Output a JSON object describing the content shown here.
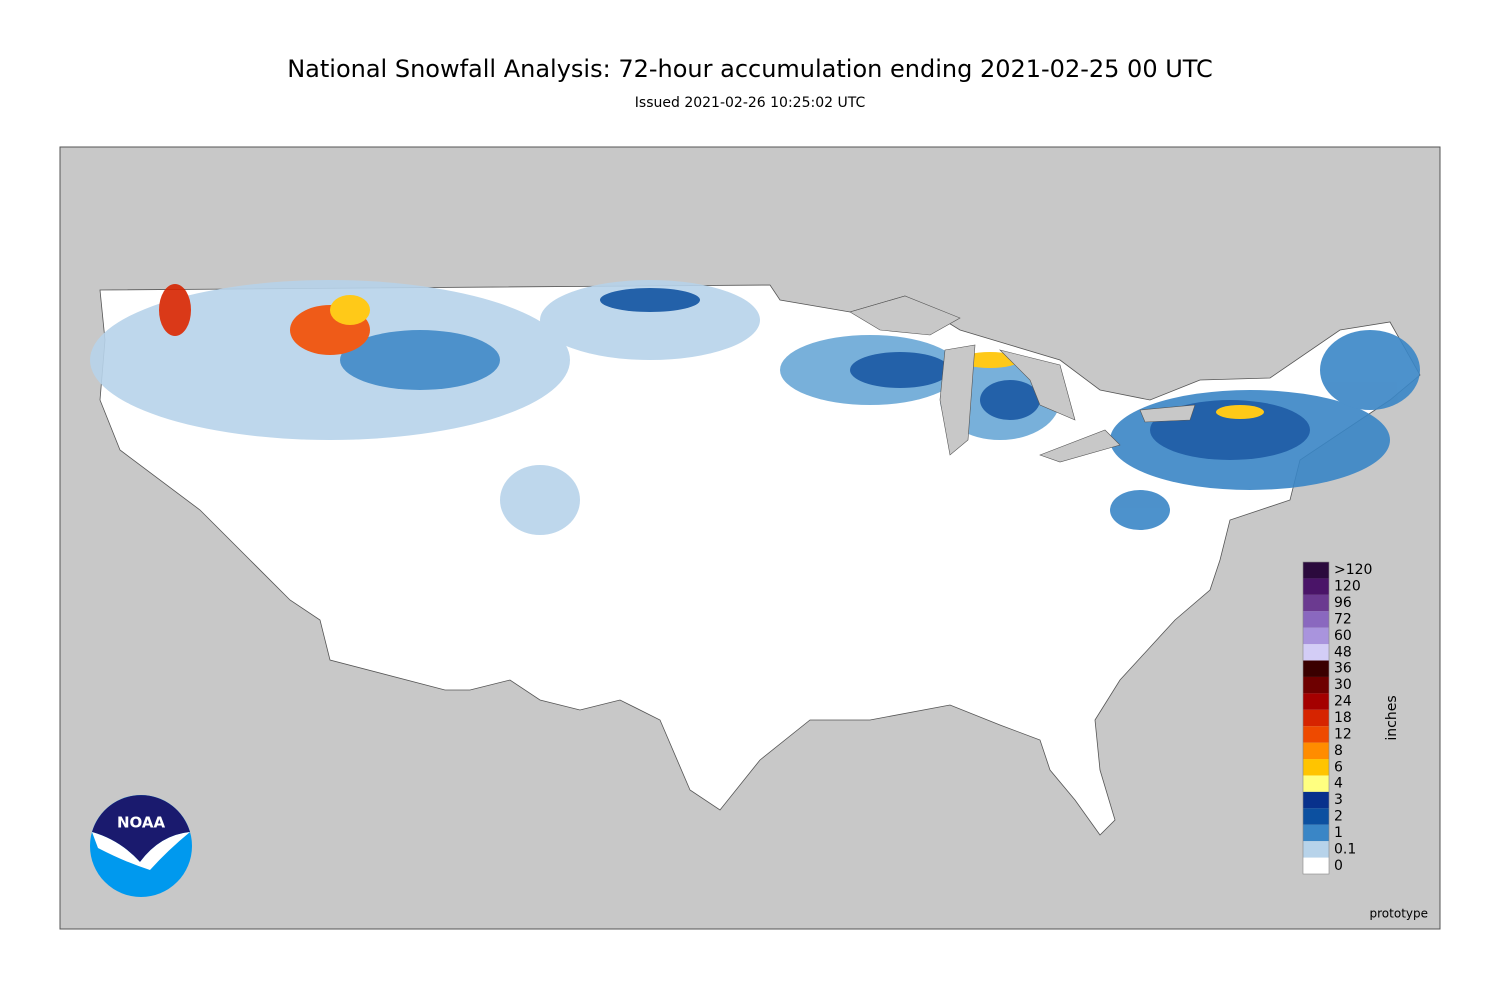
{
  "header": {
    "title": "National Snowfall Analysis: 72-hour accumulation ending 2021-02-25 00 UTC",
    "subtitle": "Issued 2021-02-26 10:25:02 UTC"
  },
  "legend": {
    "unit": "inches",
    "items": [
      {
        "label": ">120",
        "color": "#2b0a3d"
      },
      {
        "label": "120",
        "color": "#4a1468"
      },
      {
        "label": "96",
        "color": "#6b3a90"
      },
      {
        "label": "72",
        "color": "#8a68bf"
      },
      {
        "label": "60",
        "color": "#a994dd"
      },
      {
        "label": "48",
        "color": "#d3cdf6"
      },
      {
        "label": "36",
        "color": "#3a0000"
      },
      {
        "label": "30",
        "color": "#6e0000"
      },
      {
        "label": "24",
        "color": "#a40000"
      },
      {
        "label": "18",
        "color": "#d62400"
      },
      {
        "label": "12",
        "color": "#ee4a00"
      },
      {
        "label": "8",
        "color": "#ff8c00"
      },
      {
        "label": "6",
        "color": "#ffc400"
      },
      {
        "label": "4",
        "color": "#ffff80"
      },
      {
        "label": "3",
        "color": "#08318c"
      },
      {
        "label": "2",
        "color": "#0c50a0"
      },
      {
        "label": "1",
        "color": "#3a86c6"
      },
      {
        "label": "0.1",
        "color": "#b7d3ea"
      },
      {
        "label": "0",
        "color": "#ffffff"
      }
    ]
  },
  "logo": "NOAA",
  "footer": "prototype"
}
